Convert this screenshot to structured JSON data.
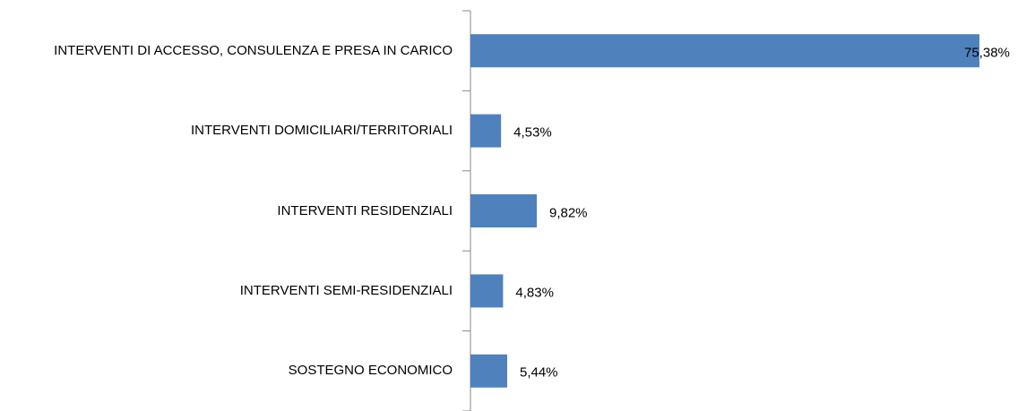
{
  "chart_data": {
    "type": "bar",
    "orientation": "horizontal",
    "categories": [
      "INTERVENTI DI ACCESSO, CONSULENZA E PRESA IN CARICO",
      "INTERVENTI DOMICILIARI/TERRITORIALI",
      "INTERVENTI RESIDENZIALI",
      "INTERVENTI SEMI-RESIDENZIALI",
      "SOSTEGNO ECONOMICO"
    ],
    "values": [
      75.38,
      4.53,
      9.82,
      4.83,
      5.44
    ],
    "value_labels": [
      "75,38%",
      "4,53%",
      "9,82%",
      "4,83%",
      "5,44%"
    ],
    "color": "#4f81bd"
  }
}
